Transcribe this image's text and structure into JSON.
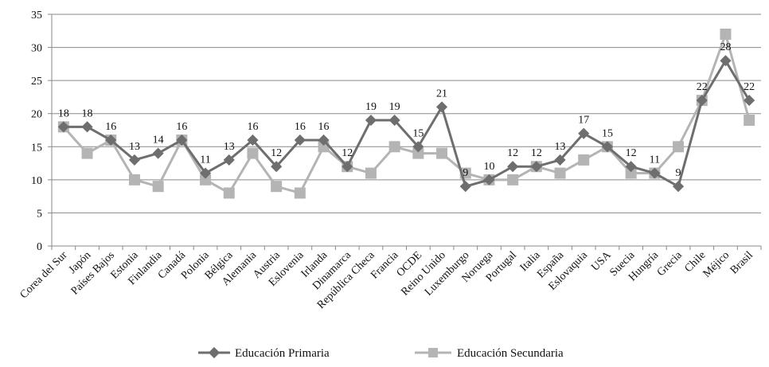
{
  "chart_data": {
    "type": "line",
    "title": "",
    "xlabel": "",
    "ylabel": "",
    "ylim": [
      0,
      35
    ],
    "yticks": [
      0,
      5,
      10,
      15,
      20,
      25,
      30,
      35
    ],
    "grid": "horizontal",
    "legend_position": "bottom",
    "categories": [
      "Corea del Sur",
      "Japón",
      "Países Bajos",
      "Estonia",
      "Finlandia",
      "Canadá",
      "Polonia",
      "Bélgica",
      "Alemania",
      "Austria",
      "Eslovenia",
      "Irlanda",
      "Dinamarca",
      "República Checa",
      "Francia",
      "OCDE",
      "Reino Unido",
      "Luxemburgo",
      "Noruega",
      "Portugal",
      "Italia",
      "España",
      "Eslovaquia",
      "USA",
      "Suecia",
      "Hungría",
      "Grecia",
      "Chile",
      "Méjico",
      "Brasil"
    ],
    "series": [
      {
        "name": "Educación Primaria",
        "color": "#6e6e6e",
        "marker": "diamond",
        "values": [
          18,
          18,
          16,
          13,
          14,
          16,
          11,
          13,
          16,
          12,
          16,
          16,
          12,
          19,
          19,
          15,
          21,
          9,
          10,
          12,
          12,
          13,
          17,
          15,
          12,
          11,
          9,
          22,
          28,
          22
        ],
        "data_labels": [
          "18",
          "18",
          "16",
          "13",
          "14",
          "16",
          "11",
          "13",
          "16",
          "12",
          "16",
          "16",
          "12",
          "19",
          "19",
          "15",
          "21",
          "9",
          "10",
          "12",
          "12",
          "13",
          "17",
          "15",
          "12",
          "11",
          "9",
          "22",
          "28",
          "22"
        ]
      },
      {
        "name": "Educación Secundaria",
        "color": "#b4b4b4",
        "marker": "square",
        "values": [
          18,
          14,
          16,
          10,
          9,
          16,
          10,
          8,
          14,
          9,
          8,
          15,
          12,
          11,
          15,
          14,
          14,
          11,
          10,
          10,
          12,
          11,
          13,
          15,
          11,
          11,
          15,
          22,
          32,
          19
        ]
      }
    ]
  }
}
